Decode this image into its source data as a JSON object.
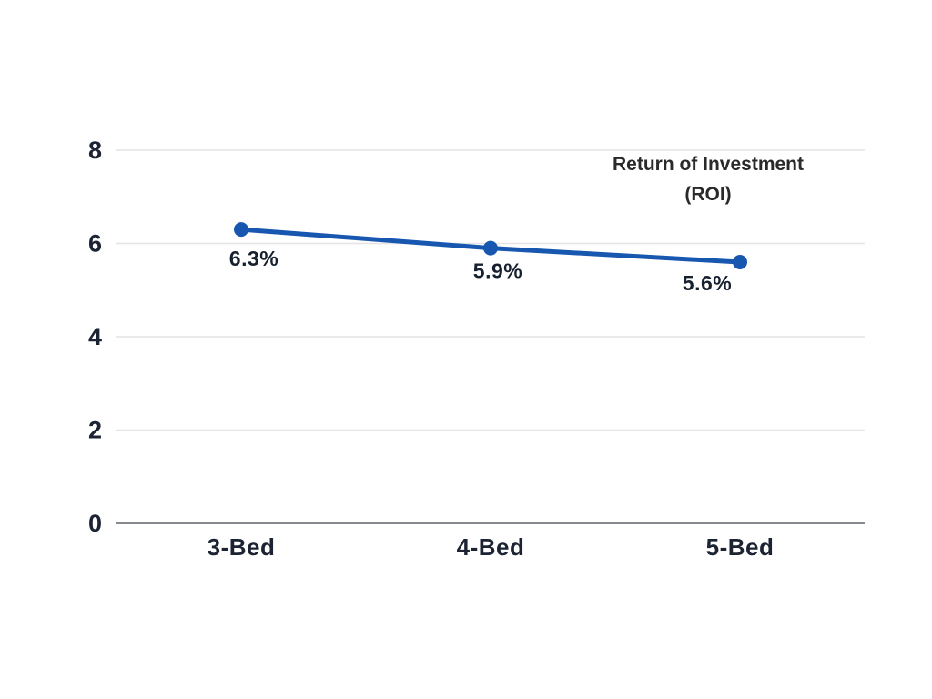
{
  "chart_data": {
    "type": "line",
    "title_lines": [
      "Return of Investment",
      "(ROI)"
    ],
    "categories": [
      "3-Bed",
      "4-Bed",
      "5-Bed"
    ],
    "series": [
      {
        "name": "Return of Investment (ROI)",
        "values": [
          6.3,
          5.9,
          5.6
        ]
      }
    ],
    "data_labels": [
      "6.3%",
      "5.9%",
      "5.6%"
    ],
    "y_ticks": [
      0,
      2,
      4,
      6,
      8
    ],
    "ylim": [
      0,
      8
    ],
    "xlabel": "",
    "ylabel": "",
    "grid": true,
    "legend_position": "top-right",
    "colors": {
      "line": "#1757b0",
      "marker": "#1757b0",
      "gridline": "#e4e4e7",
      "axis_line": "#75797f",
      "tick_label": "#1c2433",
      "data_label": "#16202e",
      "title": "#2a2a2a",
      "background": "#ffffff"
    }
  }
}
